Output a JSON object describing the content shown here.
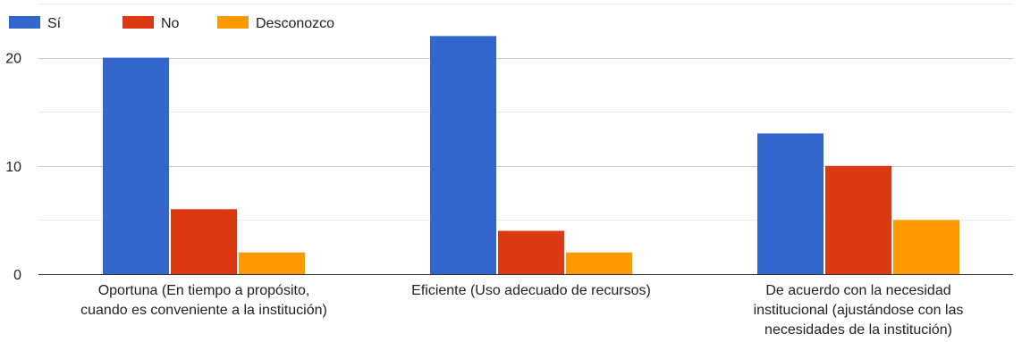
{
  "chart_data": {
    "type": "bar",
    "title": "",
    "xlabel": "",
    "ylabel": "",
    "categories": [
      [
        "Oportuna (En tiempo a propósito,",
        "cuando es conveniente a la institución)"
      ],
      [
        "Eficiente (Uso adecuado de recursos)"
      ],
      [
        "De acuerdo con la necesidad",
        "institucional (ajustándose con las",
        "necesidades de la institución)"
      ]
    ],
    "series": [
      {
        "name": "Sí",
        "color": "#3366cc",
        "values": [
          20,
          22,
          13
        ]
      },
      {
        "name": "No",
        "color": "#dc3912",
        "values": [
          6,
          4,
          10
        ]
      },
      {
        "name": "Desconozco",
        "color": "#ff9900",
        "values": [
          2,
          2,
          5
        ]
      }
    ],
    "ylim": [
      0,
      25
    ],
    "yticks": [
      0,
      10,
      20
    ],
    "gridlines": [
      0,
      5,
      10,
      15,
      20,
      25
    ],
    "legend_position": "top-left",
    "grid": true
  }
}
